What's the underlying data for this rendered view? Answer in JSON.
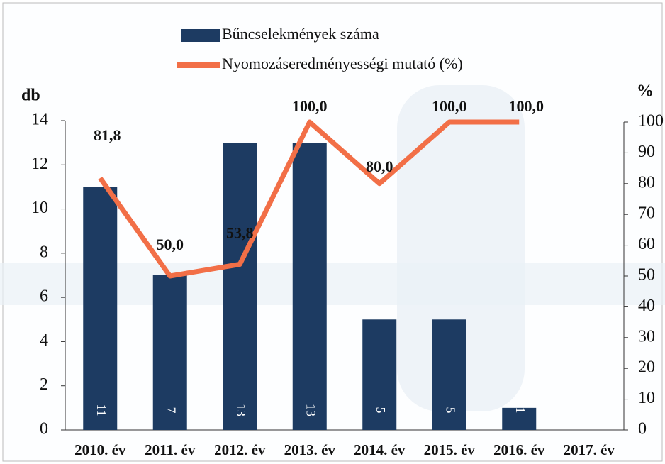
{
  "chart_data": {
    "type": "bar",
    "categories": [
      "2010. év",
      "2011. év",
      "2012. év",
      "2013. év",
      "2014. év",
      "2015. év",
      "2016. év",
      "2017. év"
    ],
    "series": [
      {
        "name": "Bűncselekmények száma",
        "color": "#1d3b62",
        "values": [
          11,
          7,
          13,
          13,
          5,
          5,
          1,
          null
        ]
      },
      {
        "name": "Nyomozáseredményességi mutató (%)",
        "color": "#f26f47",
        "type": "line",
        "axis": "y2",
        "values": [
          81.8,
          50.0,
          53.8,
          100.0,
          80.0,
          100.0,
          100.0,
          null
        ],
        "value_labels": [
          "81,8",
          "50,0",
          "53,8",
          "100,0",
          "80,0",
          "100,0",
          "100,0",
          null
        ]
      }
    ],
    "y_label": "db",
    "y2_label": "%",
    "ylim": [
      0,
      14
    ],
    "yticks": [
      0,
      2,
      4,
      6,
      8,
      10,
      12,
      14
    ],
    "y2lim": [
      0,
      100
    ],
    "y2ticks": [
      0,
      10,
      20,
      30,
      40,
      50,
      60,
      70,
      80,
      90,
      100
    ]
  }
}
